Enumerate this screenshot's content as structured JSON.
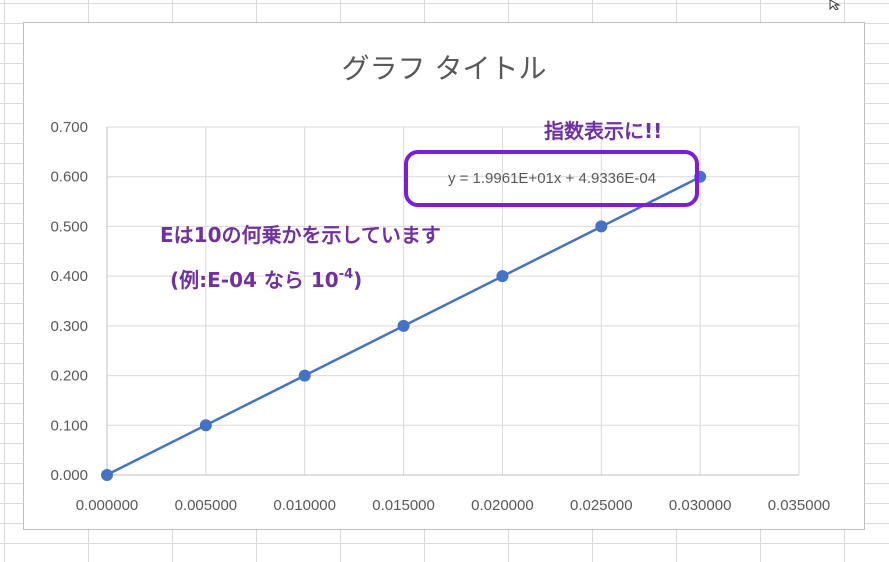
{
  "chart_data": {
    "type": "scatter",
    "title": "グラフ タイトル",
    "xlabel": "",
    "ylabel": "",
    "xlim": [
      0,
      0.035
    ],
    "ylim": [
      0,
      0.7
    ],
    "x_ticks": [
      "0.000000",
      "0.005000",
      "0.010000",
      "0.015000",
      "0.020000",
      "0.025000",
      "0.030000",
      "0.035000"
    ],
    "y_ticks": [
      "0.000",
      "0.100",
      "0.200",
      "0.300",
      "0.400",
      "0.500",
      "0.600",
      "0.700"
    ],
    "grid": true,
    "series": [
      {
        "x": [
          0,
          0.005,
          0.01,
          0.015,
          0.02,
          0.025,
          0.03
        ],
        "y": [
          0,
          0.1,
          0.2,
          0.3,
          0.4,
          0.5,
          0.6
        ],
        "trendline": {
          "type": "linear",
          "slope": 19.961,
          "intercept": 0.00049336
        }
      }
    ],
    "equation_label": "y = 1.9961E+01x + 4.9336E-04",
    "annotations": {
      "exponent_note": "指数表示に!!",
      "explain_line1": "Eは10の何乗かを示しています",
      "explain_line2_prefix": "(例:E-04 なら 10",
      "explain_line2_sup": "-4",
      "explain_line2_suffix": ")"
    },
    "colors": {
      "series": "#4472c4",
      "grid": "#d9d9d9",
      "axis": "#bfbfbf",
      "text": "#595959",
      "annotation": "#7030a0",
      "highlight_box": "#7b1fd6"
    }
  }
}
